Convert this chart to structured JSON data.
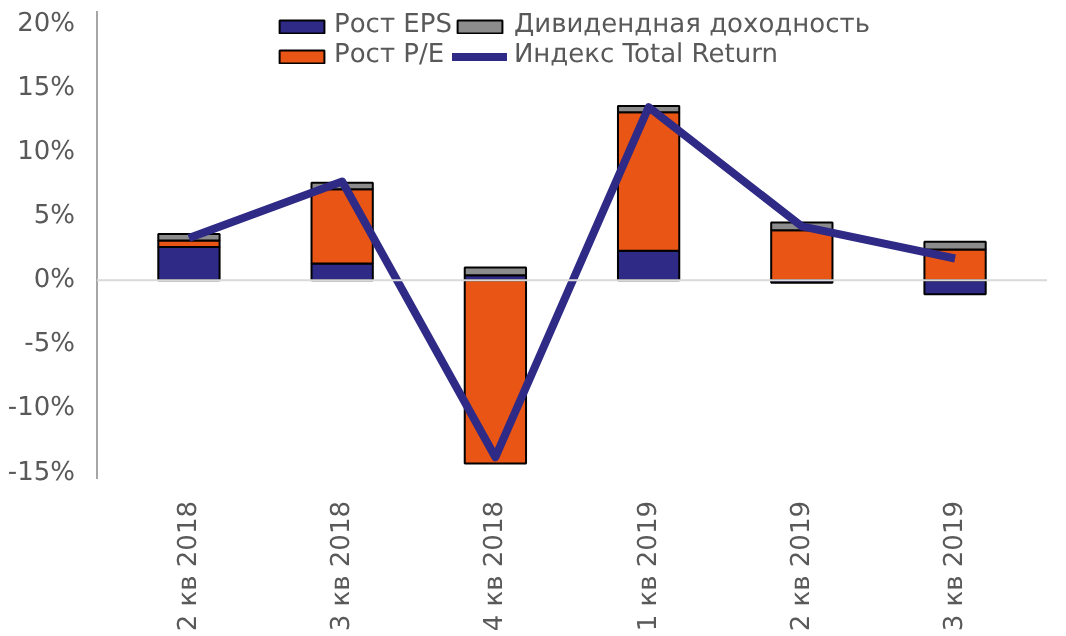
{
  "chart_data": {
    "type": "bar",
    "stacked": true,
    "categories": [
      "2 кв 2018",
      "3 кв 2018",
      "4 кв 2018",
      "1 кв 2019",
      "2 кв 2019",
      "3 кв 2019"
    ],
    "series": [
      {
        "name": "Рост EPS",
        "color": "#2e2a86",
        "values": [
          2.6,
          1.3,
          0.4,
          2.3,
          -0.2,
          -1.1
        ]
      },
      {
        "name": "Рост P/E",
        "color": "#e95514",
        "values": [
          0.5,
          5.8,
          -14.3,
          10.8,
          3.9,
          2.4
        ]
      },
      {
        "name": "Дивидендная доходность",
        "color": "#8c8c8c",
        "values": [
          0.5,
          0.5,
          0.6,
          0.5,
          0.6,
          0.6
        ]
      },
      {
        "name": "Индекс Total Return",
        "type": "line",
        "color": "#2e2a86",
        "values": [
          3.3,
          7.7,
          -13.8,
          13.5,
          4.2,
          1.7
        ]
      }
    ],
    "ylim": [
      -15.5,
      21
    ],
    "yticks": [
      {
        "value": -15,
        "label": "-15%"
      },
      {
        "value": -10,
        "label": "-10%"
      },
      {
        "value": -5,
        "label": "-5%"
      },
      {
        "value": 0,
        "label": "0%"
      },
      {
        "value": 5,
        "label": "5%"
      },
      {
        "value": 10,
        "label": "10%"
      },
      {
        "value": 15,
        "label": "15%"
      },
      {
        "value": 20,
        "label": "20%"
      }
    ],
    "ref_lines": [
      {
        "axis": "y",
        "value": 0,
        "color": "#d9d9d9"
      }
    ],
    "legend": "top",
    "grid": false
  }
}
